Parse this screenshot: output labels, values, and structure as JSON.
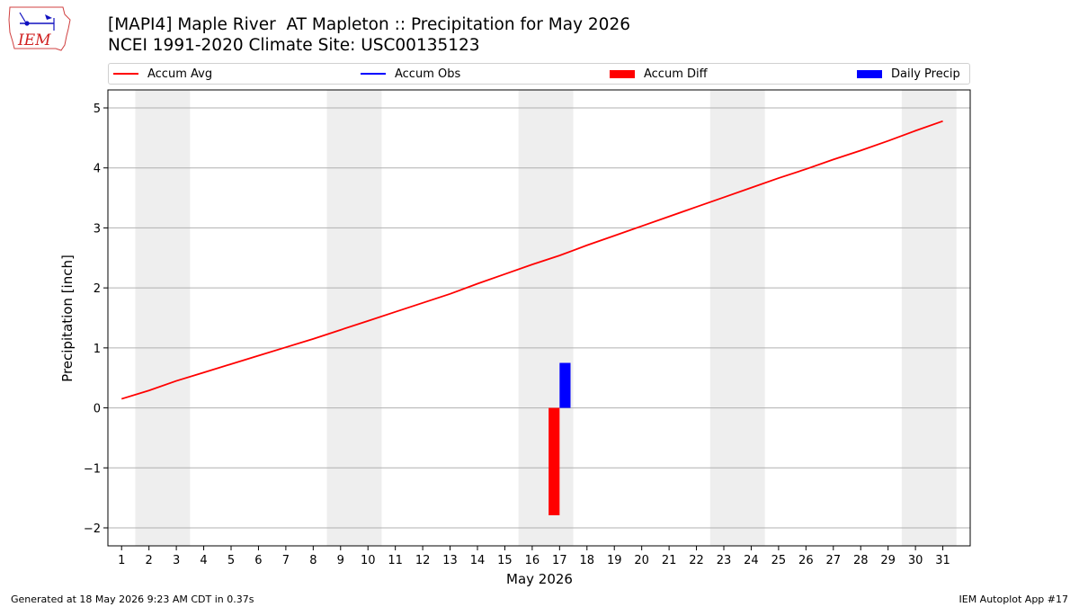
{
  "title": {
    "line1": "[MAPI4] Maple River  AT Mapleton :: Precipitation for May 2026",
    "line2": "NCEI 1991-2020 Climate Site: USC00135123"
  },
  "logo": {
    "text": "IEM",
    "icon": "iem-iowa-logo-icon"
  },
  "legend": {
    "placement": "top, full width",
    "items": [
      {
        "label": "Accum Avg",
        "color": "#ff0000",
        "kind": "line"
      },
      {
        "label": "Accum Obs",
        "color": "#0000ff",
        "kind": "line"
      },
      {
        "label": "Accum Diff",
        "color": "#ff0000",
        "kind": "bar"
      },
      {
        "label": "Daily Precip",
        "color": "#0000ff",
        "kind": "bar"
      }
    ]
  },
  "footer": {
    "left": "Generated at 18 May 2026 9:23 AM CDT in 0.37s",
    "right": "IEM Autoplot App #17"
  },
  "chart_data": {
    "type": "line",
    "xlabel": "May 2026",
    "ylabel": "Precipitation [inch]",
    "xlim": [
      0.5,
      32.0
    ],
    "ylim": [
      -2.3,
      5.3
    ],
    "x_ticks": [
      1,
      2,
      3,
      4,
      5,
      6,
      7,
      8,
      9,
      10,
      11,
      12,
      13,
      14,
      15,
      16,
      17,
      18,
      19,
      20,
      21,
      22,
      23,
      24,
      25,
      26,
      27,
      28,
      29,
      30,
      31
    ],
    "y_ticks": [
      -2,
      -1,
      0,
      1,
      2,
      3,
      4,
      5
    ],
    "y_tick_labels": [
      "−2",
      "−1",
      "0",
      "1",
      "2",
      "3",
      "4",
      "5"
    ],
    "grid": "horizontal",
    "weekend_shading": [
      [
        1.5,
        3.5
      ],
      [
        8.5,
        10.5
      ],
      [
        15.5,
        17.5
      ],
      [
        22.5,
        24.5
      ],
      [
        29.5,
        31.5
      ]
    ],
    "weekend_color": "#eeeeee",
    "series": [
      {
        "name": "Accum Avg",
        "type": "line",
        "color": "#ff0000",
        "x": [
          1,
          2,
          3,
          4,
          5,
          6,
          7,
          8,
          9,
          10,
          11,
          12,
          13,
          14,
          15,
          16,
          17,
          18,
          19,
          20,
          21,
          22,
          23,
          24,
          25,
          26,
          27,
          28,
          29,
          30,
          31
        ],
        "values": [
          0.15,
          0.29,
          0.45,
          0.59,
          0.73,
          0.87,
          1.01,
          1.15,
          1.3,
          1.45,
          1.6,
          1.75,
          1.9,
          2.07,
          2.23,
          2.39,
          2.54,
          2.71,
          2.87,
          3.03,
          3.19,
          3.35,
          3.51,
          3.67,
          3.83,
          3.98,
          4.14,
          4.29,
          4.45,
          4.62,
          4.78
        ]
      },
      {
        "name": "Accum Obs",
        "type": "line",
        "color": "#0000ff",
        "x": [],
        "values": []
      },
      {
        "name": "Accum Diff",
        "type": "bar",
        "color": "#ff0000",
        "x": [
          16.8
        ],
        "values": [
          -1.79
        ]
      },
      {
        "name": "Daily Precip",
        "type": "bar",
        "color": "#0000ff",
        "x": [
          17.2
        ],
        "values": [
          0.75
        ]
      }
    ]
  }
}
